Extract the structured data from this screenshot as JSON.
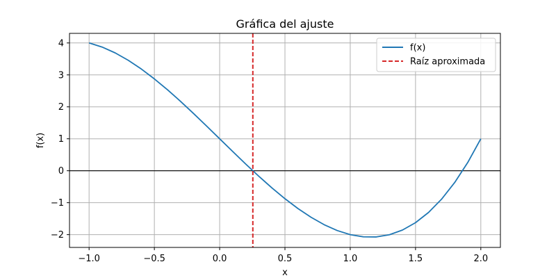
{
  "chart_data": {
    "type": "line",
    "title": "Gráfica del ajuste",
    "xlabel": "x",
    "ylabel": "f(x)",
    "xlim": [
      -1.15,
      2.15
    ],
    "ylim": [
      -2.4,
      4.3
    ],
    "grid": true,
    "legend_position": "top-right",
    "x_ticks": [
      -1.0,
      -0.5,
      0.0,
      0.5,
      1.0,
      1.5,
      2.0
    ],
    "x_tick_labels": [
      "−1.0",
      "−0.5",
      "0.0",
      "0.5",
      "1.0",
      "1.5",
      "2.0"
    ],
    "y_ticks": [
      -2,
      -1,
      0,
      1,
      2,
      3,
      4
    ],
    "y_tick_labels": [
      "−2",
      "−1",
      "0",
      "1",
      "2",
      "3",
      "4"
    ],
    "series": [
      {
        "name": "f(x)",
        "color": "#1f77b4",
        "style": "solid",
        "x": [
          -1.0,
          -0.9,
          -0.8,
          -0.7,
          -0.6,
          -0.5,
          -0.4,
          -0.3,
          -0.2,
          -0.1,
          0.0,
          0.1,
          0.2,
          0.3,
          0.4,
          0.5,
          0.6,
          0.7,
          0.8,
          0.9,
          1.0,
          1.1,
          1.2,
          1.3,
          1.4,
          1.5,
          1.6,
          1.7,
          1.8,
          1.9,
          2.0
        ],
        "y": [
          4.0,
          3.871,
          3.688,
          3.457,
          3.184,
          2.875,
          2.536,
          2.173,
          1.792,
          1.399,
          1.0,
          0.601,
          0.208,
          -0.173,
          -0.536,
          -0.875,
          -1.184,
          -1.457,
          -1.688,
          -1.871,
          -2.0,
          -2.069,
          -2.072,
          -2.003,
          -1.856,
          -1.625,
          -1.304,
          -0.887,
          -0.368,
          0.259,
          1.0
        ]
      },
      {
        "name": "Raíz aproximada",
        "color": "#d62728",
        "style": "dashed",
        "vline_x": 0.2541
      }
    ],
    "hline_y": 0
  }
}
